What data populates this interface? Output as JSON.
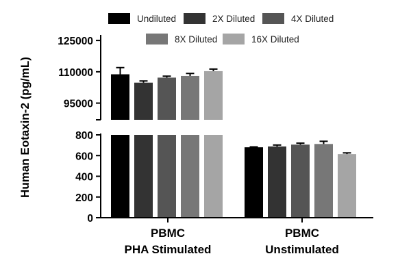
{
  "chart_data": {
    "type": "bar",
    "title": "",
    "ylabel": "Human Eotaxin-2 (pg/mL)",
    "xlabel": "",
    "axis_break": true,
    "y_segments": [
      {
        "name": "lower",
        "ylim": [
          0,
          800
        ],
        "ticks": [
          0,
          200,
          400,
          600,
          800
        ]
      },
      {
        "name": "upper",
        "ylim": [
          87000,
          127000
        ],
        "ticks": [
          95000,
          110000,
          125000
        ]
      }
    ],
    "categories": [
      [
        "PBMC",
        "PHA Stimulated"
      ],
      [
        "PBMC",
        "Unstimulated"
      ]
    ],
    "legend_position": "top",
    "series": [
      {
        "name": "Undiluted",
        "color": "#000000",
        "values": [
          108800,
          680
        ],
        "errors": [
          3200,
          4
        ]
      },
      {
        "name": "2X Diluted",
        "color": "#333333",
        "values": [
          104800,
          688
        ],
        "errors": [
          800,
          14
        ]
      },
      {
        "name": "4X Diluted",
        "color": "#555555",
        "values": [
          107200,
          706
        ],
        "errors": [
          700,
          14
        ]
      },
      {
        "name": "8X Diluted",
        "color": "#777777",
        "values": [
          108000,
          712
        ],
        "errors": [
          1200,
          26
        ]
      },
      {
        "name": "16X Diluted",
        "color": "#a5a5a5",
        "values": [
          110300,
          614
        ],
        "errors": [
          1000,
          12
        ]
      }
    ]
  }
}
